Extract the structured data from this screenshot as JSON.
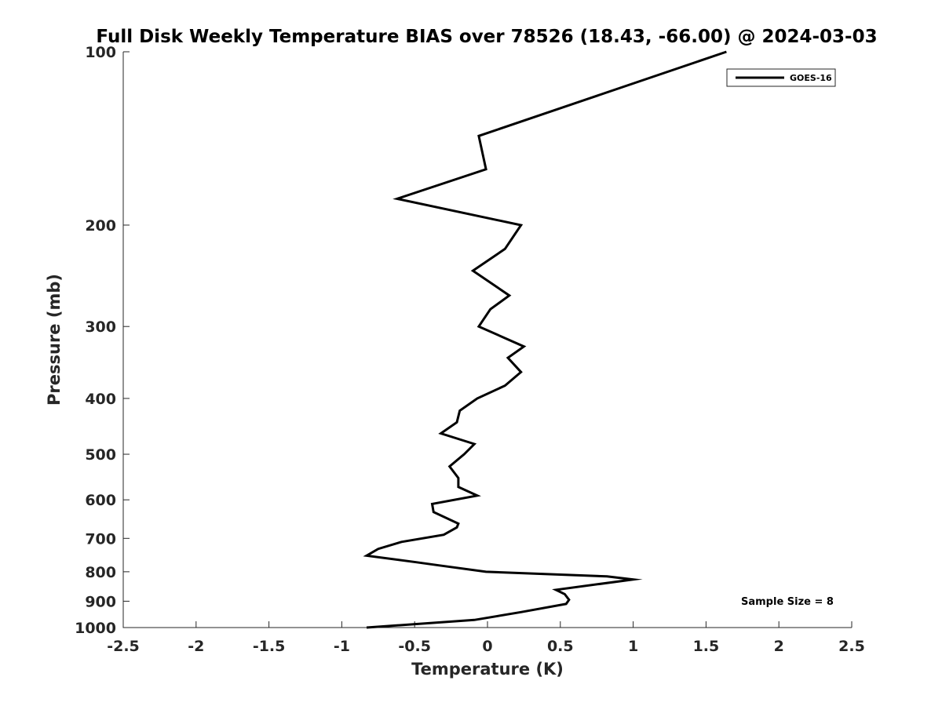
{
  "chart_data": {
    "type": "line",
    "title": "Full Disk Weekly Temperature BIAS over 78526 (18.43, -66.00) @ 2024-03-03",
    "xlabel": "Temperature (K)",
    "ylabel": "Pressure (mb)",
    "xlim": [
      -2.5,
      2.5
    ],
    "ylim": [
      100,
      1000
    ],
    "y_scale": "log",
    "y_reversed": true,
    "grid": false,
    "x_ticks": [
      -2.5,
      -2,
      -1.5,
      -1,
      -0.5,
      0,
      0.5,
      1,
      1.5,
      2,
      2.5
    ],
    "x_tick_labels": [
      "-2.5",
      "-2",
      "-1.5",
      "-1",
      "-0.5",
      "0",
      "0.5",
      "1",
      "1.5",
      "2",
      "2.5"
    ],
    "y_ticks": [
      100,
      200,
      300,
      400,
      500,
      600,
      700,
      800,
      900,
      1000
    ],
    "y_tick_labels": [
      "100",
      "200",
      "300",
      "400",
      "500",
      "600",
      "700",
      "800",
      "900",
      "1000"
    ],
    "legend_position": "top-right",
    "annotation": "Sample Size = 8",
    "series": [
      {
        "name": "GOES-16",
        "color": "#000000",
        "points": [
          {
            "x": 1.64,
            "y": 100
          },
          {
            "x": -0.06,
            "y": 140
          },
          {
            "x": -0.01,
            "y": 160
          },
          {
            "x": -0.62,
            "y": 180
          },
          {
            "x": 0.23,
            "y": 200
          },
          {
            "x": 0.12,
            "y": 220
          },
          {
            "x": -0.1,
            "y": 240
          },
          {
            "x": 0.15,
            "y": 265
          },
          {
            "x": 0.02,
            "y": 280
          },
          {
            "x": -0.06,
            "y": 300
          },
          {
            "x": 0.25,
            "y": 325
          },
          {
            "x": 0.14,
            "y": 340
          },
          {
            "x": 0.23,
            "y": 360
          },
          {
            "x": 0.12,
            "y": 380
          },
          {
            "x": -0.07,
            "y": 400
          },
          {
            "x": -0.19,
            "y": 420
          },
          {
            "x": -0.21,
            "y": 440
          },
          {
            "x": -0.32,
            "y": 460
          },
          {
            "x": -0.09,
            "y": 480
          },
          {
            "x": -0.16,
            "y": 500
          },
          {
            "x": -0.26,
            "y": 525
          },
          {
            "x": -0.2,
            "y": 550
          },
          {
            "x": -0.2,
            "y": 570
          },
          {
            "x": -0.07,
            "y": 590
          },
          {
            "x": -0.38,
            "y": 610
          },
          {
            "x": -0.37,
            "y": 630
          },
          {
            "x": -0.2,
            "y": 660
          },
          {
            "x": -0.21,
            "y": 670
          },
          {
            "x": -0.3,
            "y": 690
          },
          {
            "x": -0.59,
            "y": 710
          },
          {
            "x": -0.75,
            "y": 730
          },
          {
            "x": -0.83,
            "y": 750
          },
          {
            "x": -0.49,
            "y": 770
          },
          {
            "x": -0.33,
            "y": 780
          },
          {
            "x": -0.01,
            "y": 800
          },
          {
            "x": 0.82,
            "y": 815
          },
          {
            "x": 1.0,
            "y": 825
          },
          {
            "x": 0.47,
            "y": 860
          },
          {
            "x": 0.53,
            "y": 875
          },
          {
            "x": 0.56,
            "y": 895
          },
          {
            "x": 0.54,
            "y": 910
          },
          {
            "x": 0.23,
            "y": 940
          },
          {
            "x": -0.09,
            "y": 970
          },
          {
            "x": -0.83,
            "y": 1000
          }
        ]
      }
    ]
  }
}
